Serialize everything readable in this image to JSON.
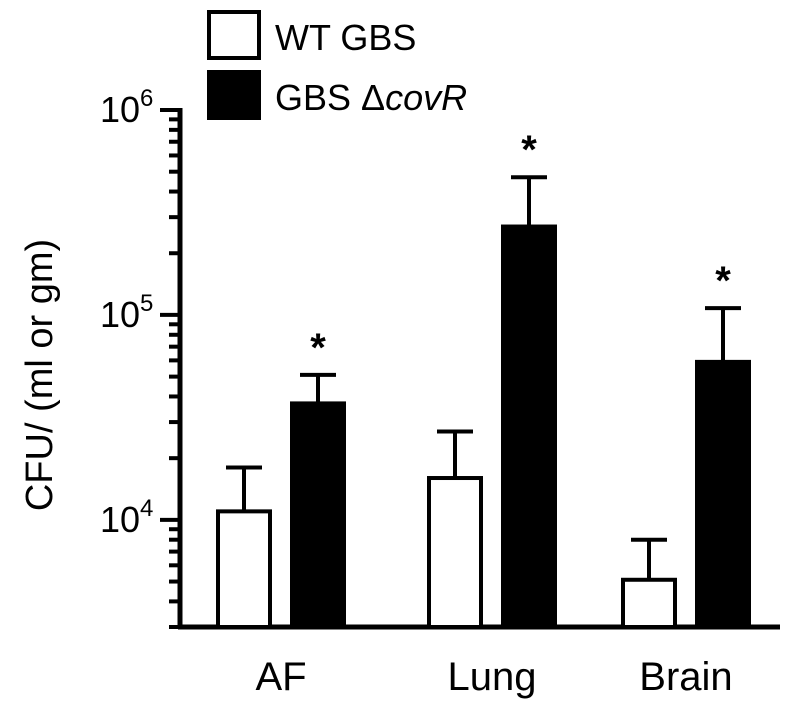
{
  "chart_data": {
    "type": "bar",
    "scale": "log",
    "ylim": [
      3000,
      1000000
    ],
    "ylabel": "CFU/ (ml or gm)",
    "yticks": [
      {
        "value": 10000,
        "base": "10",
        "exp": "4"
      },
      {
        "value": 100000,
        "base": "10",
        "exp": "5"
      },
      {
        "value": 1000000,
        "base": "10",
        "exp": "6"
      }
    ],
    "categories": [
      "AF",
      "Lung",
      "Brain"
    ],
    "series": [
      {
        "name": "WT GBS",
        "color": "#ffffff",
        "values": [
          11000,
          16000,
          5100
        ],
        "errors_upper": [
          18000,
          27000,
          8000
        ]
      },
      {
        "name": "GBS ΔcovR",
        "color": "#000000",
        "values": [
          37000,
          270000,
          59000
        ],
        "errors_upper": [
          51000,
          470000,
          108000
        ]
      }
    ],
    "legend": {
      "position": "top-left",
      "prefix": "GBS Δ",
      "italic": "covR"
    },
    "annotations": [
      "*",
      "*",
      "*"
    ],
    "grid": false
  }
}
